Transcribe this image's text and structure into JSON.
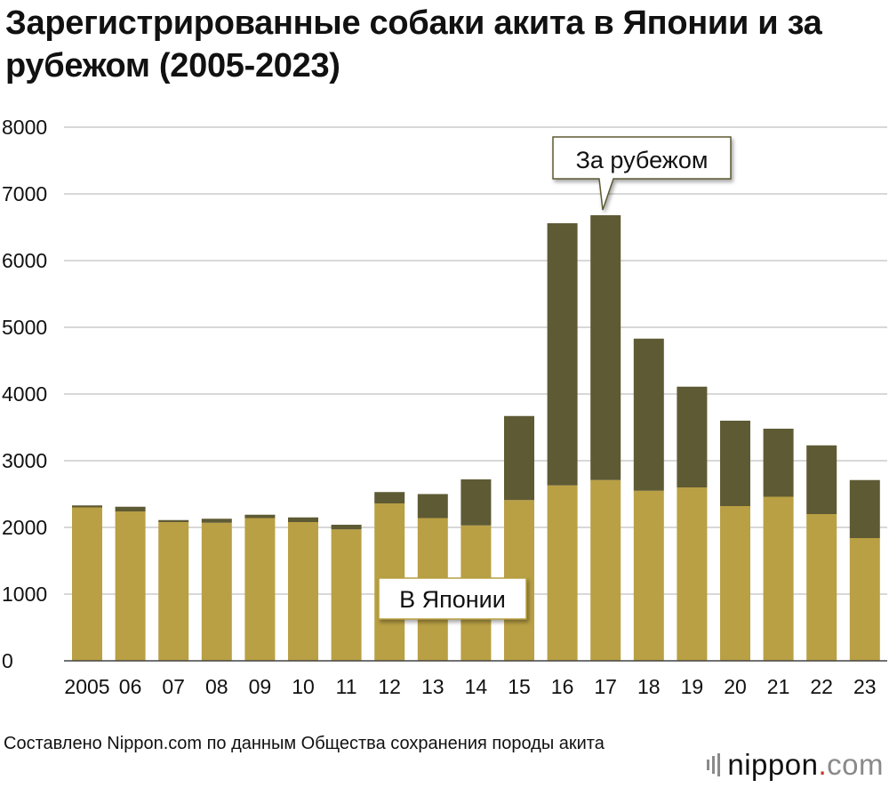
{
  "chart_data": {
    "type": "bar",
    "stacked": true,
    "title": "Зарегистрированные собаки акита в Японии и за рубежом (2005-2023)",
    "categories": [
      "2005",
      "06",
      "07",
      "08",
      "09",
      "10",
      "11",
      "12",
      "13",
      "14",
      "15",
      "16",
      "17",
      "18",
      "19",
      "20",
      "21",
      "22",
      "23"
    ],
    "series": [
      {
        "name": "В Японии",
        "color": "#b9a044",
        "values": [
          2300,
          2240,
          2080,
          2070,
          2140,
          2080,
          1970,
          2360,
          2140,
          2030,
          2410,
          2630,
          2710,
          2550,
          2600,
          2320,
          2460,
          2200,
          1840
        ]
      },
      {
        "name": "За рубежом",
        "color": "#5e5a34",
        "values": [
          30,
          70,
          30,
          60,
          50,
          70,
          70,
          170,
          360,
          690,
          1260,
          3930,
          3970,
          2280,
          1510,
          1280,
          1020,
          1030,
          870
        ]
      }
    ],
    "ylim": [
      0,
      8000
    ],
    "yticks": [
      "0",
      "1000",
      "2000",
      "3000",
      "4000",
      "5000",
      "6000",
      "7000",
      "8000"
    ],
    "grid": true,
    "xlabel": "",
    "ylabel": ""
  },
  "source": "Составлено Nippon.com по данным Общества сохранения породы акита",
  "logo": {
    "name": "nippon",
    "dot": ".",
    "suffix": "com"
  }
}
